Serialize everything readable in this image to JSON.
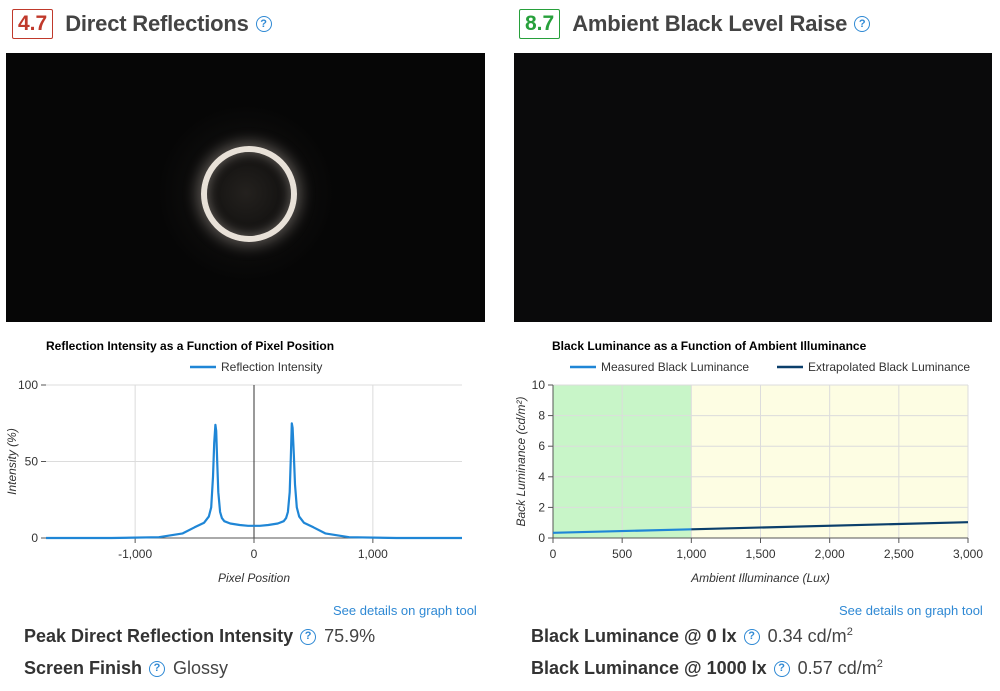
{
  "direct_reflections": {
    "score": "4.7",
    "title": "Direct Reflections",
    "chart_link": "See details on graph tool",
    "stats": [
      {
        "label": "Peak Direct Reflection Intensity",
        "value": "75.9%"
      },
      {
        "label": "Screen Finish",
        "value": "Glossy"
      }
    ]
  },
  "ambient_black": {
    "score": "8.7",
    "title": "Ambient Black Level Raise",
    "chart_link": "See details on graph tool",
    "stats": [
      {
        "label": "Black Luminance @ 0 lx",
        "value": "0.34 cd/m",
        "sup": "2"
      },
      {
        "label": "Black Luminance @ 1000 lx",
        "value": "0.57 cd/m",
        "sup": "2"
      }
    ]
  },
  "colors": {
    "score_low": "#c0392b",
    "score_high": "#27a03b",
    "link": "#2f89d4",
    "series_light": "#1f86d6",
    "series_dark": "#0b3f6b",
    "zone_green": "#c8f5c8",
    "zone_yellow": "#fdfde3"
  },
  "chart_data": [
    {
      "type": "line",
      "title": "Reflection Intensity as a Function of Pixel Position",
      "xlabel": "Pixel Position",
      "ylabel": "Intensity (%)",
      "xlim": [
        -1750,
        1750
      ],
      "ylim": [
        0,
        100
      ],
      "xticks": [
        -1000,
        0,
        1000
      ],
      "xtick_labels": [
        "-1,000",
        "0",
        "1,000"
      ],
      "yticks": [
        0,
        50,
        100
      ],
      "grid": true,
      "legend": "top-center",
      "series": [
        {
          "name": "Reflection Intensity",
          "x": [
            -1750,
            -1200,
            -800,
            -600,
            -500,
            -420,
            -380,
            -360,
            -345,
            -335,
            -325,
            -318,
            -310,
            -300,
            -285,
            -270,
            -250,
            -200,
            -120,
            -50,
            0,
            50,
            120,
            200,
            250,
            270,
            285,
            300,
            310,
            318,
            325,
            335,
            345,
            360,
            380,
            420,
            500,
            600,
            800,
            1200,
            1750
          ],
          "y": [
            0,
            0,
            0.5,
            3,
            7,
            10,
            14,
            20,
            40,
            62,
            74,
            70,
            50,
            30,
            17,
            13,
            11,
            9.5,
            8.5,
            8,
            8,
            8,
            8.5,
            9.5,
            11,
            13,
            17,
            30,
            52,
            75,
            72,
            55,
            35,
            20,
            14,
            10,
            7,
            3,
            0.5,
            0,
            0
          ]
        }
      ]
    },
    {
      "type": "line",
      "title": "Black Luminance as a Function of Ambient Illuminance",
      "xlabel": "Ambient Illuminance (Lux)",
      "ylabel": "Back Luminance (cd/m²)",
      "xlim": [
        0,
        3000
      ],
      "ylim": [
        0,
        10
      ],
      "xticks": [
        0,
        500,
        1000,
        1500,
        2000,
        2500,
        3000
      ],
      "xtick_labels": [
        "0",
        "500",
        "1,000",
        "1,500",
        "2,000",
        "2,500",
        "3,000"
      ],
      "yticks": [
        0,
        2,
        4,
        6,
        8,
        10
      ],
      "grid": true,
      "legend": "top-center",
      "zones": [
        {
          "x": [
            0,
            1000
          ],
          "color": "green"
        },
        {
          "x": [
            1000,
            3000
          ],
          "color": "yellow"
        }
      ],
      "series": [
        {
          "name": "Measured Black Luminance",
          "x": [
            0,
            1000
          ],
          "y": [
            0.34,
            0.57
          ]
        },
        {
          "name": "Extrapolated Black Luminance",
          "x": [
            1000,
            3000
          ],
          "y": [
            0.57,
            1.03
          ]
        }
      ]
    }
  ]
}
